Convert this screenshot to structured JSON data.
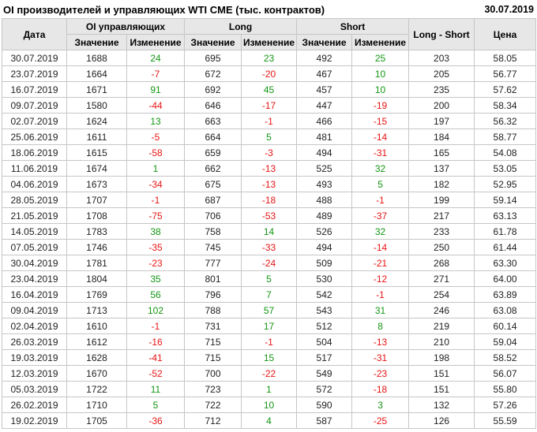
{
  "title": "OI производителей и управляющих WTI CME (тыс. контрактов)",
  "report_date": "30.07.2019",
  "chart_data": {
    "type": "table",
    "title": "OI производителей и управляющих WTI CME (тыс. контрактов)",
    "column_groups": [
      {
        "label": "Дата",
        "span": 1
      },
      {
        "label": "OI управляющих",
        "span": 2
      },
      {
        "label": "Long",
        "span": 2
      },
      {
        "label": "Short",
        "span": 2
      },
      {
        "label": "Long - Short",
        "span": 1
      },
      {
        "label": "Цена",
        "span": 1
      }
    ],
    "sub_headers": [
      "Значение",
      "Изменение",
      "Значение",
      "Изменение",
      "Значение",
      "Изменение"
    ],
    "rows": [
      [
        "30.07.2019",
        1688,
        24,
        695,
        23,
        492,
        25,
        203,
        "58.05"
      ],
      [
        "23.07.2019",
        1664,
        -7,
        672,
        -20,
        467,
        10,
        205,
        "56.77"
      ],
      [
        "16.07.2019",
        1671,
        91,
        692,
        45,
        457,
        10,
        235,
        "57.62"
      ],
      [
        "09.07.2019",
        1580,
        -44,
        646,
        -17,
        447,
        -19,
        200,
        "58.34"
      ],
      [
        "02.07.2019",
        1624,
        13,
        663,
        -1,
        466,
        -15,
        197,
        "56.32"
      ],
      [
        "25.06.2019",
        1611,
        -5,
        664,
        5,
        481,
        -14,
        184,
        "58.77"
      ],
      [
        "18.06.2019",
        1615,
        -58,
        659,
        -3,
        494,
        -31,
        165,
        "54.08"
      ],
      [
        "11.06.2019",
        1674,
        1,
        662,
        -13,
        525,
        32,
        137,
        "53.05"
      ],
      [
        "04.06.2019",
        1673,
        -34,
        675,
        -13,
        493,
        5,
        182,
        "52.95"
      ],
      [
        "28.05.2019",
        1707,
        -1,
        687,
        -18,
        488,
        -1,
        199,
        "59.14"
      ],
      [
        "21.05.2019",
        1708,
        -75,
        706,
        -53,
        489,
        -37,
        217,
        "63.13"
      ],
      [
        "14.05.2019",
        1783,
        38,
        758,
        14,
        526,
        32,
        233,
        "61.78"
      ],
      [
        "07.05.2019",
        1746,
        -35,
        745,
        -33,
        494,
        -14,
        250,
        "61.44"
      ],
      [
        "30.04.2019",
        1781,
        -23,
        777,
        -24,
        509,
        -21,
        268,
        "63.30"
      ],
      [
        "23.04.2019",
        1804,
        35,
        801,
        5,
        530,
        -12,
        271,
        "64.00"
      ],
      [
        "16.04.2019",
        1769,
        56,
        796,
        7,
        542,
        -1,
        254,
        "63.89"
      ],
      [
        "09.04.2019",
        1713,
        102,
        788,
        57,
        543,
        31,
        246,
        "63.08"
      ],
      [
        "02.04.2019",
        1610,
        -1,
        731,
        17,
        512,
        8,
        219,
        "60.14"
      ],
      [
        "26.03.2019",
        1612,
        -16,
        715,
        -1,
        504,
        -13,
        210,
        "59.04"
      ],
      [
        "19.03.2019",
        1628,
        -41,
        715,
        15,
        517,
        -31,
        198,
        "58.52"
      ],
      [
        "12.03.2019",
        1670,
        -52,
        700,
        -22,
        549,
        -23,
        151,
        "56.07"
      ],
      [
        "05.03.2019",
        1722,
        11,
        723,
        1,
        572,
        -18,
        151,
        "55.80"
      ],
      [
        "26.02.2019",
        1710,
        5,
        722,
        10,
        590,
        3,
        132,
        "57.26"
      ],
      [
        "19.02.2019",
        1705,
        -36,
        712,
        4,
        587,
        -25,
        126,
        "55.59"
      ]
    ]
  },
  "colors": {
    "positive": "#149614",
    "negative": "#e81414",
    "header_bg": "#e7e7e7",
    "border": "#c6c6c6",
    "text": "#222222"
  }
}
